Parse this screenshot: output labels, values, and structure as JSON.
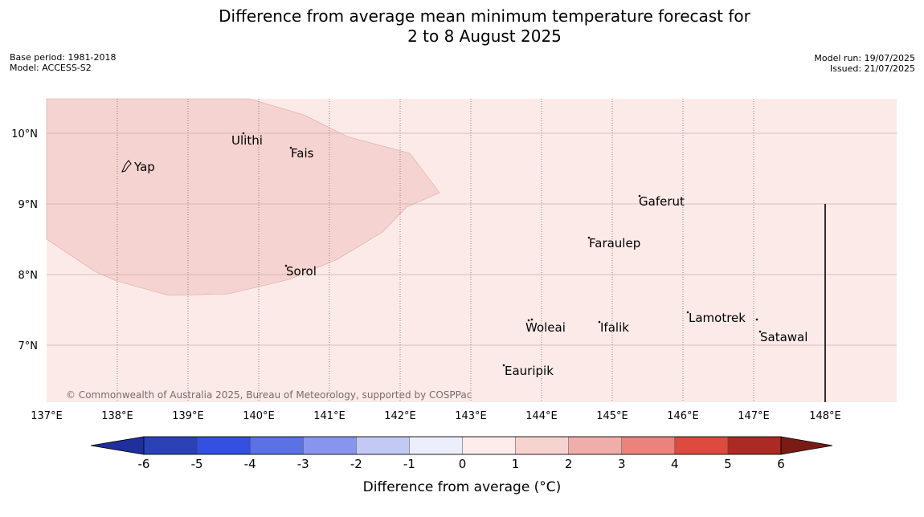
{
  "header": {
    "title_line1": "Difference from average mean minimum temperature forecast for",
    "title_line2": "2 to 8 August 2025",
    "base_period": "Base period: 1981-2018",
    "model": "Model: ACCESS-S2",
    "model_run": "Model run: 19/07/2025",
    "issued": "Issued: 21/07/2025"
  },
  "map": {
    "lon_range": [
      137,
      149
    ],
    "lat_range": [
      6.2,
      10.5
    ],
    "background_color": "#fbeae8",
    "anomaly_patch_color": "#f5d3d0",
    "lat_labels": [
      "10°N",
      "9°N",
      "8°N",
      "7°N"
    ],
    "lon_labels": [
      "137°E",
      "138°E",
      "139°E",
      "140°E",
      "141°E",
      "142°E",
      "143°E",
      "144°E",
      "145°E",
      "146°E",
      "147°E",
      "148°E"
    ],
    "places": [
      "Yap",
      "Ulithi",
      "Fais",
      "Gaferut",
      "Faraulep",
      "Sorol",
      "Lamotrek",
      "Woleai",
      "Ifalik",
      "Satawal",
      "Eauripik"
    ],
    "copyright": "© Commonwealth of Australia 2025, Bureau of Meteorology, supported by COSPPac"
  },
  "colorbar": {
    "ticks": [
      "-6",
      "-5",
      "-4",
      "-3",
      "-2",
      "-1",
      "0",
      "1",
      "2",
      "3",
      "4",
      "5",
      "6"
    ],
    "colors": [
      "#1f2f9c",
      "#2a42b5",
      "#3350e0",
      "#5a72e3",
      "#8796ec",
      "#c3c9f5",
      "#eceefc",
      "#fdeceb",
      "#f7d3d0",
      "#efaea9",
      "#e9837b",
      "#dd4a3f",
      "#ab2a24",
      "#7b1b16"
    ],
    "title": "Difference from average (°C)"
  }
}
